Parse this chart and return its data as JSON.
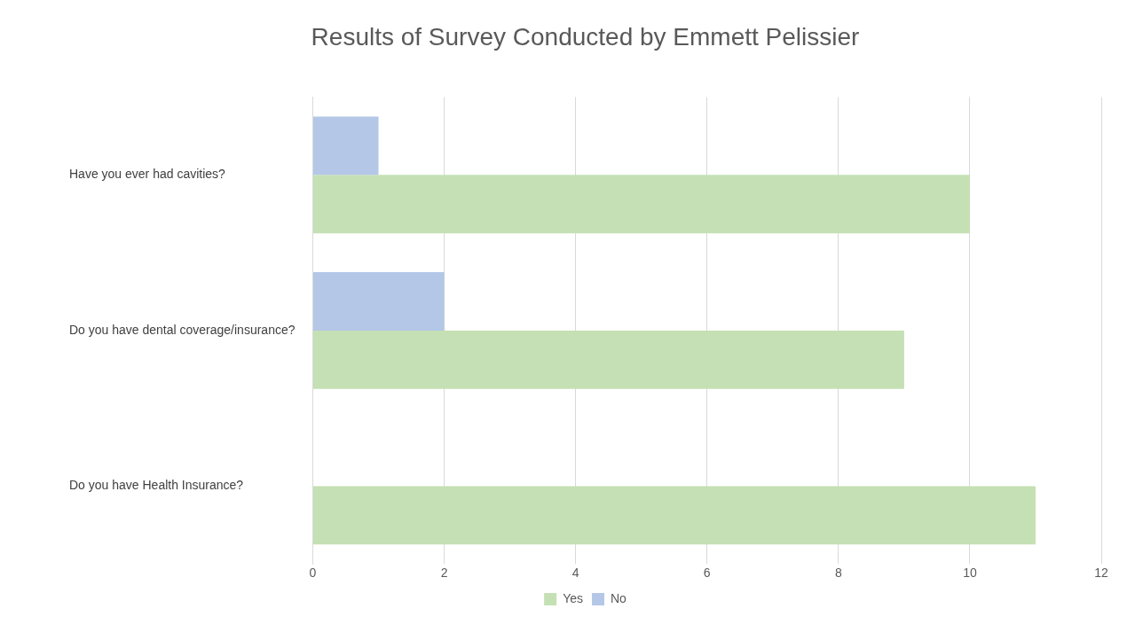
{
  "chart_data": {
    "type": "bar",
    "orientation": "horizontal",
    "title": "Results of Survey Conducted by Emmett Pelissier",
    "categories": [
      "Have you ever had cavities?",
      "Do you have dental coverage/insurance?",
      "Do you have Health Insurance?"
    ],
    "series": [
      {
        "name": "Yes",
        "color": "#c5e0b4",
        "values": [
          10,
          9,
          11
        ]
      },
      {
        "name": "No",
        "color": "#b4c7e7",
        "values": [
          1,
          2,
          0
        ]
      }
    ],
    "xlim": [
      0,
      12
    ],
    "xticks": [
      0,
      2,
      4,
      6,
      8,
      10,
      12
    ],
    "grid": "x",
    "legend": "bottom"
  }
}
